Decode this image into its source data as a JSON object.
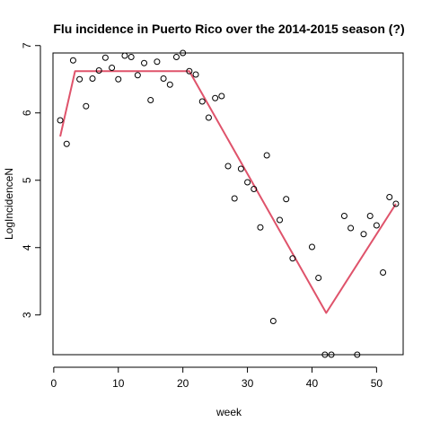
{
  "chart_data": {
    "type": "scatter",
    "title": "Flu incidence in Puerto Rico over the 2014-2015 season (?)",
    "xlabel": "week",
    "ylabel": "LogIncidenceN",
    "xlim": [
      -0.12,
      54.12
    ],
    "ylim": [
      2.41,
      6.89
    ],
    "x_ticks": [
      0,
      10,
      20,
      30,
      40,
      50
    ],
    "y_ticks": [
      3,
      4,
      5,
      6,
      7
    ],
    "grid": false,
    "point_color": "#000000",
    "line_color": "#DF536B",
    "points": [
      [
        1,
        5.89
      ],
      [
        2,
        5.54
      ],
      [
        3,
        6.78
      ],
      [
        4,
        6.5
      ],
      [
        5,
        6.1
      ],
      [
        6,
        6.51
      ],
      [
        7,
        6.63
      ],
      [
        8,
        6.82
      ],
      [
        9,
        6.67
      ],
      [
        10,
        6.5
      ],
      [
        11,
        6.85
      ],
      [
        12,
        6.83
      ],
      [
        13,
        6.56
      ],
      [
        14,
        6.74
      ],
      [
        15,
        6.19
      ],
      [
        16,
        6.76
      ],
      [
        17,
        6.51
      ],
      [
        18,
        6.42
      ],
      [
        19,
        6.83
      ],
      [
        20,
        6.89
      ],
      [
        21,
        6.62
      ],
      [
        22,
        6.57
      ],
      [
        23,
        6.17
      ],
      [
        24,
        5.93
      ],
      [
        25,
        6.22
      ],
      [
        26,
        6.25
      ],
      [
        27,
        5.21
      ],
      [
        28,
        4.73
      ],
      [
        29,
        5.17
      ],
      [
        30,
        4.97
      ],
      [
        31,
        4.87
      ],
      [
        32,
        4.3
      ],
      [
        33,
        5.37
      ],
      [
        34,
        2.91
      ],
      [
        35,
        4.41
      ],
      [
        36,
        4.72
      ],
      [
        37,
        3.84
      ],
      [
        40,
        4.01
      ],
      [
        41,
        3.55
      ],
      [
        42,
        2.41
      ],
      [
        43,
        2.41
      ],
      [
        45,
        4.47
      ],
      [
        46,
        4.29
      ],
      [
        47,
        2.41
      ],
      [
        48,
        4.2
      ],
      [
        49,
        4.47
      ],
      [
        50,
        4.33
      ],
      [
        51,
        3.63
      ],
      [
        52,
        4.75
      ],
      [
        53,
        4.65
      ]
    ],
    "fit_line": [
      [
        1,
        5.65
      ],
      [
        3.3,
        6.62
      ],
      [
        21,
        6.62
      ],
      [
        42.2,
        3.03
      ],
      [
        53,
        4.65
      ]
    ]
  }
}
